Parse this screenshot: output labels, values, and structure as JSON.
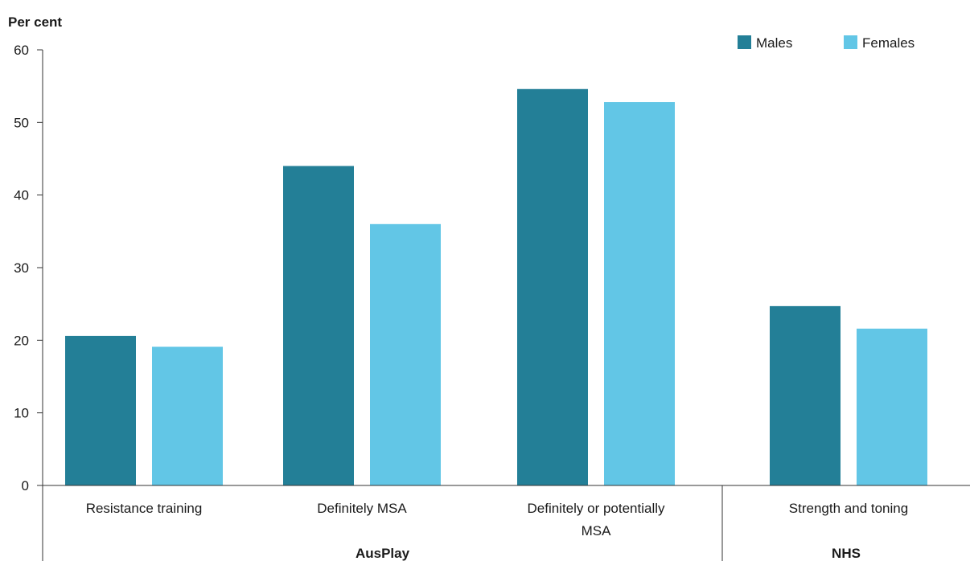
{
  "chart_data": {
    "type": "bar",
    "ylabel": "Per cent",
    "ylim": [
      0,
      60
    ],
    "yticks": [
      0,
      10,
      20,
      30,
      40,
      50,
      60
    ],
    "categories": [
      "Resistance training",
      "Definitely MSA",
      "Definitely or potentially MSA",
      "Strength and toning"
    ],
    "category_lines": [
      [
        "Resistance training"
      ],
      [
        "Definitely MSA"
      ],
      [
        "Definitely or potentially",
        "MSA"
      ],
      [
        "Strength and toning"
      ]
    ],
    "groups": [
      {
        "label": "AusPlay",
        "categories": [
          "Resistance training",
          "Definitely MSA",
          "Definitely or potentially MSA"
        ]
      },
      {
        "label": "NHS",
        "categories": [
          "Strength and toning"
        ]
      }
    ],
    "series": [
      {
        "name": "Males",
        "color": "#237f97",
        "values": [
          20.6,
          44.0,
          54.6,
          24.7
        ]
      },
      {
        "name": "Females",
        "color": "#62c6e6",
        "values": [
          19.1,
          36.0,
          52.8,
          21.6
        ]
      }
    ],
    "legend_position": "top-right",
    "grid": false
  }
}
